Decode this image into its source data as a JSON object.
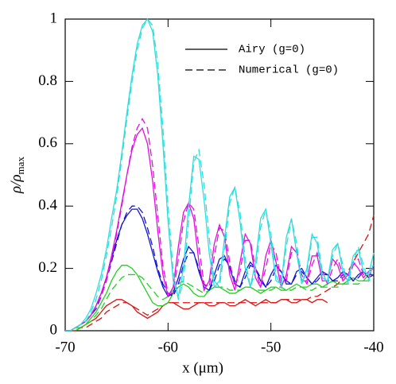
{
  "chart_data": {
    "type": "line",
    "xlabel": "x    (μm)",
    "ylabel": {
      "main": "ρ/ρ",
      "sub": "max"
    },
    "legend": [
      {
        "label": "Airy (g=0)",
        "dash": "solid"
      },
      {
        "label": "Numerical (g=0)",
        "dash": "dashed"
      }
    ],
    "legend_position": "upper right",
    "xlim": [
      -70,
      -40
    ],
    "xticks": [
      -70,
      -60,
      -50,
      -40
    ],
    "ylim": [
      0,
      1
    ],
    "yticks": [
      0,
      0.2,
      0.4,
      0.6,
      0.8,
      1
    ],
    "x": [
      -70,
      -69.5,
      -69,
      -68.5,
      -68,
      -67.5,
      -67,
      -66.5,
      -66,
      -65.5,
      -65,
      -64.5,
      -64,
      -63.5,
      -63,
      -62.5,
      -62,
      -61.5,
      -61,
      -60.5,
      -60,
      -59.5,
      -59,
      -58.5,
      -58,
      -57.5,
      -57,
      -56.5,
      -56,
      -55.5,
      -55,
      -54.5,
      -54,
      -53.5,
      -53,
      -52.5,
      -52,
      -51.5,
      -51,
      -50.5,
      -50,
      -49.5,
      -49,
      -48.5,
      -48,
      -47.5,
      -47,
      -46.5,
      -46,
      -45.5,
      -45,
      -44.5,
      -44,
      -43.5,
      -43,
      -42.5,
      -42,
      -41.5,
      -41,
      -40.5,
      -40
    ],
    "series": [
      {
        "color": "#e01010",
        "dash": "solid",
        "values": [
          0,
          0,
          0,
          0.01,
          0.02,
          0.03,
          0.04,
          0.06,
          0.08,
          0.09,
          0.1,
          0.1,
          0.09,
          0.08,
          0.06,
          0.05,
          0.04,
          0.05,
          0.06,
          0.08,
          0.09,
          0.09,
          0.08,
          0.07,
          0.07,
          0.08,
          0.09,
          0.09,
          0.08,
          0.08,
          0.09,
          0.09,
          0.08,
          0.08,
          0.09,
          0.1,
          0.09,
          0.08,
          0.09,
          0.1,
          0.09,
          0.09,
          0.1,
          0.1,
          0.09,
          0.09,
          0.1,
          0.1,
          0.09,
          0.1,
          0.1,
          0.09,
          null,
          null,
          null,
          null,
          null,
          null,
          null,
          null,
          null
        ]
      },
      {
        "color": "#e01010",
        "dash": "dashed",
        "values": [
          0,
          0,
          0,
          0.01,
          0.01,
          0.02,
          0.03,
          0.04,
          0.06,
          0.07,
          0.08,
          0.09,
          0.09,
          0.08,
          0.07,
          0.06,
          0.05,
          0.06,
          0.07,
          0.08,
          0.09,
          0.09,
          0.09,
          0.09,
          0.09,
          0.09,
          0.09,
          0.09,
          0.09,
          0.09,
          0.09,
          0.09,
          0.09,
          0.09,
          0.09,
          0.09,
          0.09,
          0.09,
          0.09,
          0.09,
          0.09,
          0.09,
          0.1,
          0.1,
          0.1,
          0.1,
          0.1,
          0.1,
          0.11,
          0.11,
          0.12,
          0.13,
          0.14,
          0.15,
          0.17,
          0.19,
          0.22,
          0.25,
          0.28,
          0.31,
          0.37
        ]
      },
      {
        "color": "#20d020",
        "dash": "solid",
        "values": [
          0,
          0,
          0.01,
          0.01,
          0.02,
          0.04,
          0.06,
          0.09,
          0.12,
          0.16,
          0.19,
          0.21,
          0.21,
          0.2,
          0.18,
          0.15,
          0.12,
          0.09,
          0.08,
          0.08,
          0.09,
          0.12,
          0.14,
          0.15,
          0.14,
          0.12,
          0.11,
          0.11,
          0.13,
          0.14,
          0.14,
          0.13,
          0.12,
          0.12,
          0.13,
          0.14,
          0.14,
          0.13,
          0.12,
          0.13,
          0.14,
          0.14,
          0.13,
          0.13,
          0.14,
          0.15,
          0.14,
          0.14,
          0.15,
          0.15,
          0.14,
          0.15,
          0.16,
          0.15,
          0.15,
          0.16,
          0.17,
          0.16,
          0.16,
          0.18,
          0.18
        ]
      },
      {
        "color": "#20d020",
        "dash": "dashed",
        "values": [
          0,
          0,
          0,
          0.01,
          0.02,
          0.03,
          0.05,
          0.07,
          0.1,
          0.13,
          0.15,
          0.17,
          0.18,
          0.18,
          0.18,
          0.17,
          0.15,
          0.13,
          0.11,
          0.1,
          0.11,
          0.13,
          0.15,
          0.16,
          0.15,
          0.14,
          0.13,
          0.12,
          0.13,
          0.14,
          0.14,
          0.14,
          0.13,
          0.13,
          0.13,
          0.14,
          0.14,
          0.13,
          0.13,
          0.13,
          0.13,
          0.14,
          0.14,
          0.13,
          0.13,
          0.14,
          0.14,
          0.13,
          0.13,
          0.14,
          0.14,
          0.14,
          0.14,
          0.14,
          0.15,
          0.15,
          0.15,
          0.15,
          0.16,
          0.16,
          0.17
        ]
      },
      {
        "color": "#1414d2",
        "dash": "solid",
        "values": [
          0,
          0,
          0.01,
          0.02,
          0.03,
          0.05,
          0.08,
          0.12,
          0.17,
          0.23,
          0.29,
          0.34,
          0.37,
          0.39,
          0.39,
          0.36,
          0.31,
          0.25,
          0.19,
          0.14,
          0.11,
          0.12,
          0.17,
          0.23,
          0.27,
          0.25,
          0.19,
          0.14,
          0.13,
          0.18,
          0.23,
          0.24,
          0.2,
          0.15,
          0.14,
          0.19,
          0.22,
          0.2,
          0.16,
          0.14,
          0.18,
          0.21,
          0.19,
          0.15,
          0.15,
          0.19,
          0.2,
          0.17,
          0.15,
          0.17,
          0.19,
          0.18,
          0.16,
          0.17,
          0.19,
          0.18,
          0.16,
          0.18,
          0.19,
          0.17,
          0.18
        ]
      },
      {
        "color": "#1414d2",
        "dash": "dashed",
        "values": [
          0,
          0,
          0.01,
          0.02,
          0.03,
          0.05,
          0.07,
          0.11,
          0.16,
          0.22,
          0.28,
          0.34,
          0.38,
          0.4,
          0.4,
          0.38,
          0.33,
          0.27,
          0.2,
          0.15,
          0.12,
          0.11,
          0.15,
          0.21,
          0.25,
          0.25,
          0.2,
          0.15,
          0.13,
          0.16,
          0.21,
          0.23,
          0.21,
          0.16,
          0.14,
          0.17,
          0.21,
          0.2,
          0.17,
          0.14,
          0.16,
          0.2,
          0.19,
          0.16,
          0.15,
          0.18,
          0.19,
          0.17,
          0.15,
          0.16,
          0.18,
          0.18,
          0.16,
          0.16,
          0.18,
          0.18,
          0.16,
          0.17,
          0.19,
          0.18,
          0.18
        ]
      },
      {
        "color": "#e010e0",
        "dash": "solid",
        "values": [
          0,
          0,
          0.01,
          0.02,
          0.03,
          0.05,
          0.08,
          0.12,
          0.17,
          0.24,
          0.32,
          0.41,
          0.5,
          0.58,
          0.63,
          0.65,
          0.6,
          0.48,
          0.32,
          0.18,
          0.11,
          0.14,
          0.27,
          0.38,
          0.41,
          0.36,
          0.22,
          0.13,
          0.16,
          0.28,
          0.34,
          0.3,
          0.18,
          0.13,
          0.22,
          0.31,
          0.28,
          0.17,
          0.14,
          0.24,
          0.29,
          0.22,
          0.14,
          0.18,
          0.27,
          0.25,
          0.16,
          0.16,
          0.24,
          0.24,
          0.16,
          0.16,
          0.23,
          0.21,
          0.16,
          0.18,
          0.22,
          0.2,
          0.17,
          0.19,
          0.2
        ]
      },
      {
        "color": "#e010e0",
        "dash": "dashed",
        "values": [
          0,
          0,
          0.01,
          0.02,
          0.03,
          0.05,
          0.08,
          0.11,
          0.16,
          0.23,
          0.31,
          0.4,
          0.5,
          0.59,
          0.65,
          0.68,
          0.65,
          0.53,
          0.37,
          0.21,
          0.12,
          0.12,
          0.23,
          0.35,
          0.41,
          0.39,
          0.27,
          0.15,
          0.14,
          0.24,
          0.33,
          0.32,
          0.22,
          0.14,
          0.19,
          0.29,
          0.29,
          0.2,
          0.14,
          0.2,
          0.28,
          0.25,
          0.16,
          0.16,
          0.25,
          0.26,
          0.18,
          0.15,
          0.21,
          0.25,
          0.19,
          0.15,
          0.2,
          0.23,
          0.18,
          0.16,
          0.21,
          0.23,
          0.18,
          0.17,
          0.21
        ]
      },
      {
        "color": "#30dede",
        "dash": "solid",
        "values": [
          0,
          0,
          0.01,
          0.02,
          0.04,
          0.07,
          0.12,
          0.18,
          0.26,
          0.36,
          0.45,
          0.57,
          0.7,
          0.82,
          0.92,
          0.98,
          1,
          0.96,
          0.82,
          0.6,
          0.35,
          0.16,
          0.11,
          0.2,
          0.4,
          0.56,
          0.55,
          0.42,
          0.25,
          0.14,
          0.16,
          0.3,
          0.43,
          0.46,
          0.35,
          0.2,
          0.14,
          0.22,
          0.36,
          0.39,
          0.28,
          0.16,
          0.15,
          0.3,
          0.36,
          0.25,
          0.15,
          0.2,
          0.31,
          0.28,
          0.17,
          0.16,
          0.26,
          0.28,
          0.19,
          0.16,
          0.24,
          0.26,
          0.19,
          0.18,
          0.25
        ]
      },
      {
        "color": "#30dede",
        "dash": "dashed",
        "values": [
          0,
          0,
          0.01,
          0.02,
          0.03,
          0.06,
          0.1,
          0.16,
          0.24,
          0.33,
          0.43,
          0.55,
          0.68,
          0.8,
          0.9,
          0.97,
          1,
          0.98,
          0.86,
          0.65,
          0.4,
          0.19,
          0.1,
          0.16,
          0.35,
          0.54,
          0.58,
          0.47,
          0.3,
          0.16,
          0.14,
          0.26,
          0.41,
          0.46,
          0.38,
          0.23,
          0.14,
          0.19,
          0.33,
          0.39,
          0.31,
          0.18,
          0.14,
          0.27,
          0.36,
          0.28,
          0.16,
          0.18,
          0.3,
          0.3,
          0.19,
          0.15,
          0.24,
          0.28,
          0.21,
          0.15,
          0.22,
          0.27,
          0.21,
          0.16,
          0.22
        ]
      }
    ]
  }
}
